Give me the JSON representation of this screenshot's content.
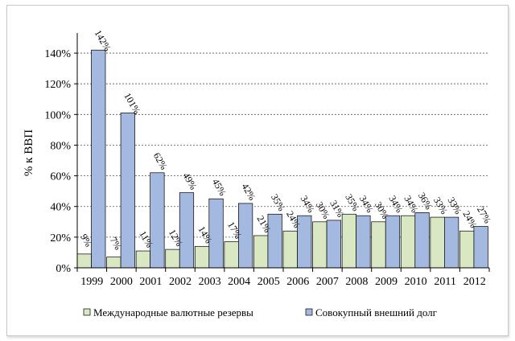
{
  "chart_data": {
    "type": "bar",
    "categories": [
      "1999",
      "2000",
      "2001",
      "2002",
      "2003",
      "2004",
      "2005",
      "2006",
      "2007",
      "2008",
      "2009",
      "2010",
      "2011",
      "2012"
    ],
    "series": [
      {
        "name": "Международные валютные резервы",
        "color": "#d9e8c3",
        "values": [
          9,
          7,
          11,
          12,
          14,
          17,
          21,
          24,
          30,
          35,
          30,
          34,
          33,
          24
        ],
        "labels": [
          "9%",
          "7%",
          "11%",
          "12%",
          "14%",
          "17%",
          "21%",
          "24%",
          "30%",
          "35%",
          "30%",
          "34%",
          "33%",
          "24%"
        ]
      },
      {
        "name": "Совокупный внешний долг",
        "color": "#a3b9df",
        "values": [
          142,
          101,
          62,
          49,
          45,
          42,
          35,
          34,
          31,
          34,
          34,
          36,
          33,
          27
        ],
        "labels": [
          "142%",
          "101%",
          "62%",
          "49%",
          "45%",
          "42%",
          "35%",
          "34%",
          "31%",
          "34%",
          "34%",
          "36%",
          "33%",
          "27%"
        ]
      }
    ],
    "ylabel": "% к ВВП",
    "xlabel": "",
    "ylim": [
      0,
      150
    ],
    "yticks": [
      "0%",
      "20%",
      "40%",
      "60%",
      "80%",
      "100%",
      "120%",
      "140%"
    ],
    "ytick_values": [
      0,
      20,
      40,
      60,
      80,
      100,
      120,
      140
    ],
    "grid": "horizontal dashed",
    "legend": "bottom"
  }
}
